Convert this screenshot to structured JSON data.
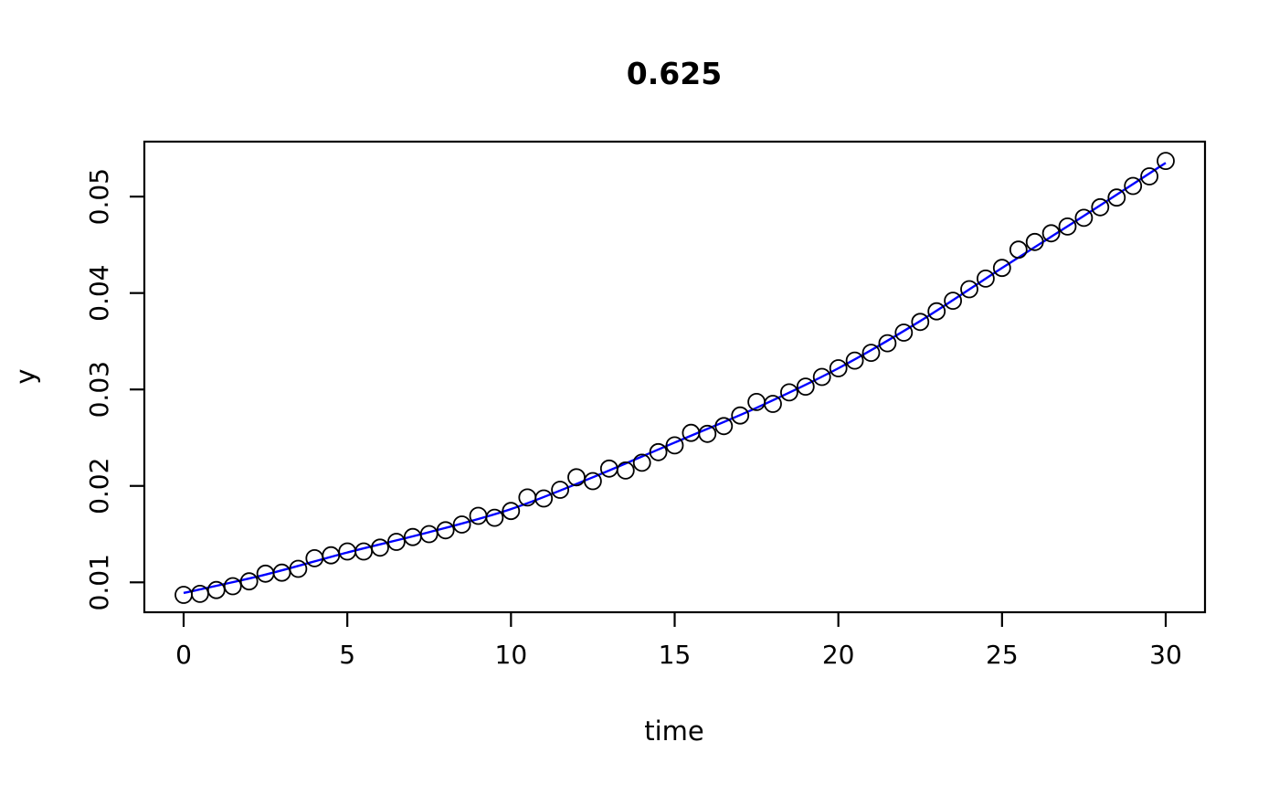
{
  "figure": {
    "background": "#ffffff",
    "axis_color": "#000000",
    "text_color": "#000000"
  },
  "chart_data": {
    "type": "scatter",
    "title": "0.625",
    "xlabel": "time",
    "ylabel": "y",
    "x_tick_labels": [
      "0",
      "5",
      "10",
      "15",
      "20",
      "25",
      "30"
    ],
    "x_tick_values": [
      0,
      5,
      10,
      15,
      20,
      25,
      30
    ],
    "y_tick_labels": [
      "0.01",
      "0.02",
      "0.03",
      "0.04",
      "0.05"
    ],
    "y_tick_values": [
      0.01,
      0.02,
      0.03,
      0.04,
      0.05
    ],
    "xlim": [
      -1.2,
      31.2
    ],
    "ylim": [
      0.0069,
      0.0557
    ],
    "grid": false,
    "legend_position": "none",
    "point_style": "open-circle",
    "point_color": "#000000",
    "line_color": "#0000FF",
    "series": [
      {
        "name": "observed-points",
        "type": "scatter",
        "x": [
          0,
          0.5,
          1,
          1.5,
          2,
          2.5,
          3,
          3.5,
          4,
          4.5,
          5,
          5.5,
          6,
          6.5,
          7,
          7.5,
          8,
          8.5,
          9,
          9.5,
          10,
          10.5,
          11,
          11.5,
          12,
          12.5,
          13,
          13.5,
          14,
          14.5,
          15,
          15.5,
          16,
          16.5,
          17,
          17.5,
          18,
          18.5,
          19,
          19.5,
          20,
          20.5,
          21,
          21.5,
          22,
          22.5,
          23,
          23.5,
          24,
          24.5,
          25,
          25.5,
          26,
          26.5,
          27,
          27.5,
          28,
          28.5,
          29,
          29.5,
          30
        ],
        "y": [
          0.0087,
          0.0088,
          0.0092,
          0.0096,
          0.0101,
          0.0109,
          0.011,
          0.0114,
          0.0125,
          0.0128,
          0.0132,
          0.0132,
          0.0136,
          0.0142,
          0.0147,
          0.015,
          0.0154,
          0.016,
          0.0169,
          0.0167,
          0.0174,
          0.0188,
          0.0187,
          0.0196,
          0.0209,
          0.0205,
          0.0218,
          0.0216,
          0.0224,
          0.0235,
          0.0242,
          0.0255,
          0.0254,
          0.0262,
          0.0273,
          0.0287,
          0.0285,
          0.0297,
          0.0303,
          0.0313,
          0.0322,
          0.033,
          0.0338,
          0.0348,
          0.0359,
          0.037,
          0.0381,
          0.0392,
          0.0404,
          0.0415,
          0.0426,
          0.0445,
          0.0453,
          0.0462,
          0.0469,
          0.0478,
          0.0489,
          0.0499,
          0.0511,
          0.0521,
          0.0537
        ]
      },
      {
        "name": "fitted-line",
        "type": "line",
        "x": [
          0,
          2.5,
          5,
          7.5,
          10,
          12.5,
          15,
          17.5,
          20,
          22.5,
          25,
          27.5,
          30
        ],
        "y": [
          0.0089,
          0.0108,
          0.0131,
          0.0152,
          0.0176,
          0.0209,
          0.0245,
          0.0281,
          0.0322,
          0.0371,
          0.0426,
          0.048,
          0.0535
        ]
      }
    ]
  }
}
